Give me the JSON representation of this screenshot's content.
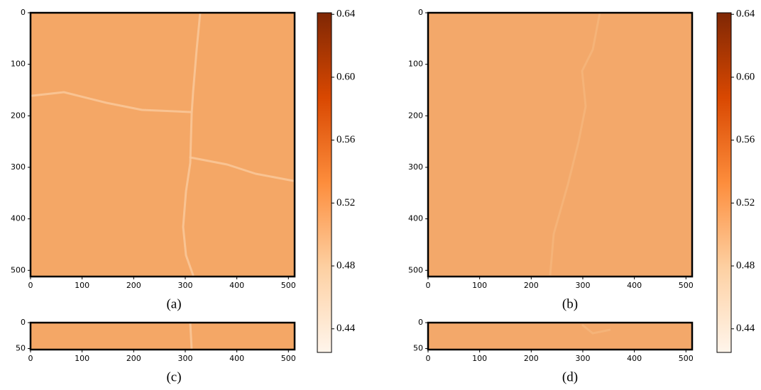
{
  "chart_data": [
    {
      "type": "heatmap",
      "label": "(a)",
      "xlim": [
        0,
        512
      ],
      "ylim": [
        512,
        0
      ],
      "xticks": [
        0,
        100,
        200,
        300,
        400,
        500
      ],
      "yticks": [
        0,
        100,
        200,
        300,
        400,
        500
      ]
    },
    {
      "type": "heatmap",
      "label": "(b)",
      "xlim": [
        0,
        512
      ],
      "ylim": [
        512,
        0
      ],
      "xticks": [
        0,
        100,
        200,
        300,
        400,
        500
      ],
      "yticks": [
        0,
        100,
        200,
        300,
        400,
        500
      ]
    },
    {
      "type": "heatmap",
      "label": "(c)",
      "xlim": [
        0,
        512
      ],
      "ylim": [
        52,
        0
      ],
      "xticks": [
        0,
        100,
        200,
        300,
        400,
        500
      ],
      "yticks": [
        0,
        50
      ]
    },
    {
      "type": "heatmap",
      "label": "(d)",
      "xlim": [
        0,
        512
      ],
      "ylim": [
        52,
        0
      ],
      "xticks": [
        0,
        100,
        200,
        300,
        400,
        500
      ],
      "yticks": [
        0,
        50
      ]
    },
    {
      "type": "colorbar",
      "ylim": [
        0.425,
        0.641
      ],
      "yticks": [
        0.44,
        0.48,
        0.52,
        0.56,
        {
          "value": 0.6,
          "label": "0.60"
        },
        0.64
      ]
    },
    {
      "type": "colorbar",
      "ylim": [
        0.425,
        0.641
      ],
      "yticks": [
        0.44,
        0.48,
        0.52,
        0.56,
        {
          "value": 0.6,
          "label": "0.60"
        },
        0.64
      ]
    }
  ]
}
